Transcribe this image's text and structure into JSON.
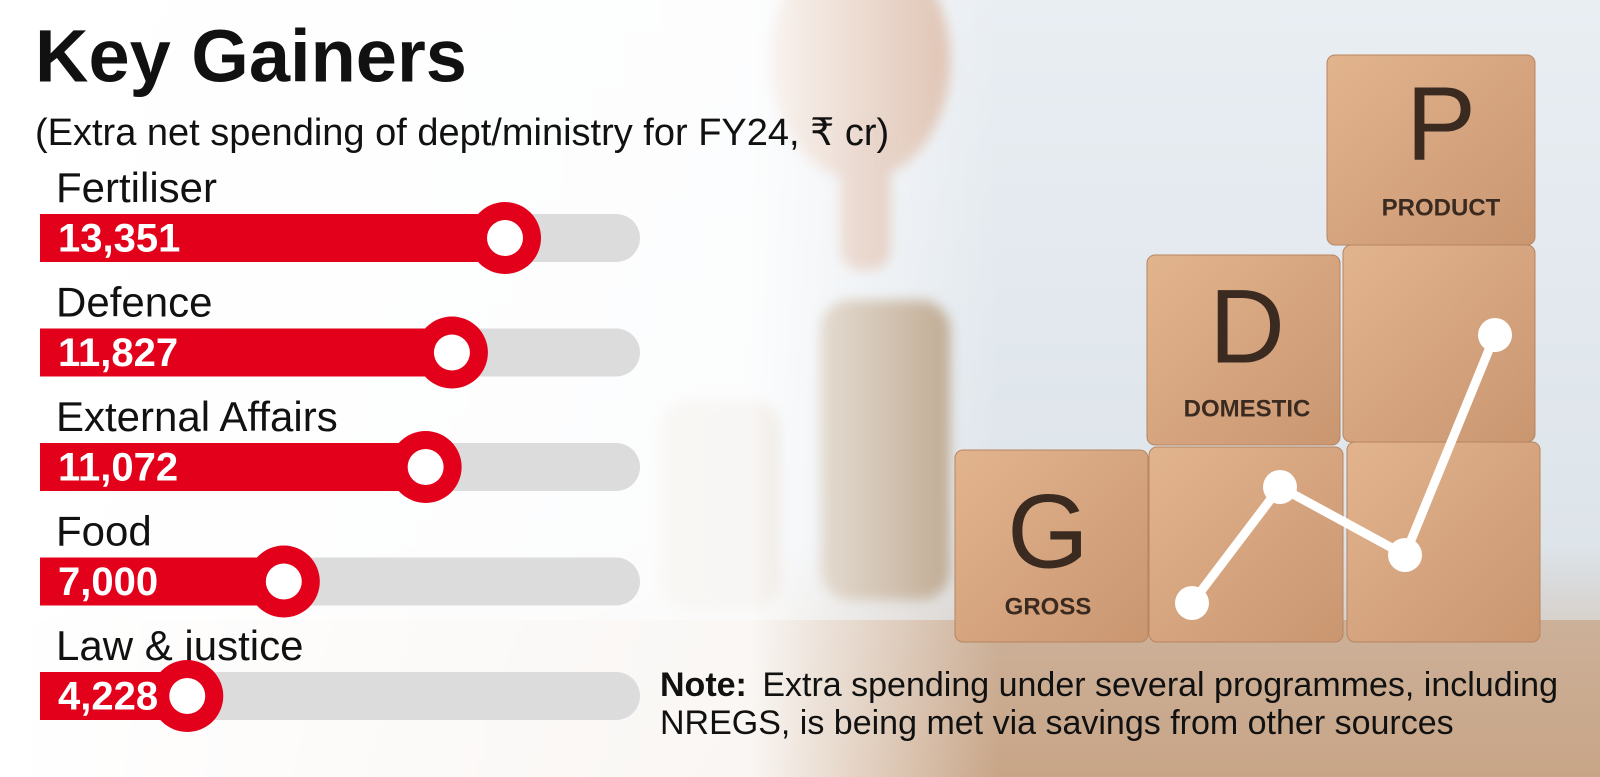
{
  "chart_data": {
    "type": "bar",
    "orientation": "horizontal",
    "title": "Key Gainers",
    "subtitle": "(Extra net spending of dept/ministry for FY24, ₹ cr)",
    "categories": [
      "Fertiliser",
      "Defence",
      "External Affairs",
      "Food",
      "Law & justice"
    ],
    "values": [
      13351,
      11827,
      11072,
      7000,
      4228
    ],
    "value_labels": [
      "13,351",
      "11,827",
      "11,072",
      "7,000",
      "4,228"
    ],
    "color": "#e3001b",
    "track_color": "#dcdcdc",
    "note": {
      "label": "Note:",
      "lines": [
        "Extra spending under several programmes, including",
        "NREGS, is being met via savings from other  sources"
      ]
    }
  },
  "background_blocks": [
    {
      "letter": "G",
      "word": "GROSS"
    },
    {
      "letter": "D",
      "word": "DOMESTIC"
    },
    {
      "letter": "P",
      "word": "PRODUCT"
    }
  ]
}
